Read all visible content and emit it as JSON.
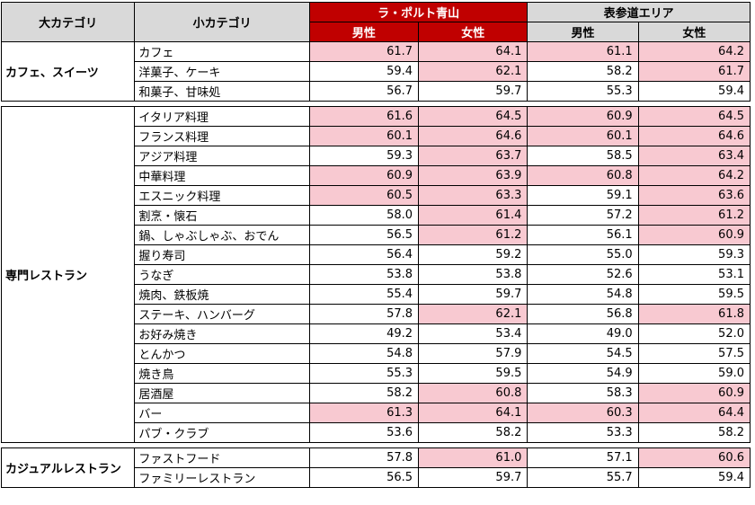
{
  "headers": {
    "major": "大カテゴリ",
    "minor": "小カテゴリ",
    "lp_area": "ラ・ポルト青山",
    "om_area": "表参道エリア",
    "male": "男性",
    "female": "女性"
  },
  "groups": [
    {
      "name": "カフェ、スイーツ",
      "rows": [
        {
          "sub": "カフェ",
          "lp_m": "61.7",
          "lp_f": "64.1",
          "om_m": "61.1",
          "om_f": "64.2",
          "hl": [
            true,
            true,
            true,
            true
          ]
        },
        {
          "sub": "洋菓子、ケーキ",
          "lp_m": "59.4",
          "lp_f": "62.1",
          "om_m": "58.2",
          "om_f": "61.7",
          "hl": [
            false,
            true,
            false,
            true
          ]
        },
        {
          "sub": "和菓子、甘味処",
          "lp_m": "56.7",
          "lp_f": "59.7",
          "om_m": "55.3",
          "om_f": "59.4",
          "hl": [
            false,
            false,
            false,
            false
          ]
        }
      ]
    },
    {
      "name": "専門レストラン",
      "rows": [
        {
          "sub": "イタリア料理",
          "lp_m": "61.6",
          "lp_f": "64.5",
          "om_m": "60.9",
          "om_f": "64.5",
          "hl": [
            true,
            true,
            true,
            true
          ]
        },
        {
          "sub": "フランス料理",
          "lp_m": "60.1",
          "lp_f": "64.6",
          "om_m": "60.1",
          "om_f": "64.6",
          "hl": [
            true,
            true,
            true,
            true
          ]
        },
        {
          "sub": "アジア料理",
          "lp_m": "59.3",
          "lp_f": "63.7",
          "om_m": "58.5",
          "om_f": "63.4",
          "hl": [
            false,
            true,
            false,
            true
          ]
        },
        {
          "sub": "中華料理",
          "lp_m": "60.9",
          "lp_f": "63.9",
          "om_m": "60.8",
          "om_f": "64.2",
          "hl": [
            true,
            true,
            true,
            true
          ]
        },
        {
          "sub": "エスニック料理",
          "lp_m": "60.5",
          "lp_f": "63.3",
          "om_m": "59.1",
          "om_f": "63.6",
          "hl": [
            true,
            true,
            false,
            true
          ]
        },
        {
          "sub": "割烹・懐石",
          "lp_m": "58.0",
          "lp_f": "61.4",
          "om_m": "57.2",
          "om_f": "61.2",
          "hl": [
            false,
            true,
            false,
            true
          ]
        },
        {
          "sub": "鍋、しゃぶしゃぶ、おでん",
          "lp_m": "56.5",
          "lp_f": "61.2",
          "om_m": "56.1",
          "om_f": "60.9",
          "hl": [
            false,
            true,
            false,
            true
          ]
        },
        {
          "sub": "握り寿司",
          "lp_m": "56.4",
          "lp_f": "59.2",
          "om_m": "55.0",
          "om_f": "59.3",
          "hl": [
            false,
            false,
            false,
            false
          ]
        },
        {
          "sub": "うなぎ",
          "lp_m": "53.8",
          "lp_f": "53.8",
          "om_m": "52.6",
          "om_f": "53.1",
          "hl": [
            false,
            false,
            false,
            false
          ]
        },
        {
          "sub": "焼肉、鉄板焼",
          "lp_m": "55.4",
          "lp_f": "59.7",
          "om_m": "54.8",
          "om_f": "59.5",
          "hl": [
            false,
            false,
            false,
            false
          ]
        },
        {
          "sub": "ステーキ、ハンバーグ",
          "lp_m": "57.8",
          "lp_f": "62.1",
          "om_m": "56.8",
          "om_f": "61.8",
          "hl": [
            false,
            true,
            false,
            true
          ]
        },
        {
          "sub": "お好み焼き",
          "lp_m": "49.2",
          "lp_f": "53.4",
          "om_m": "49.0",
          "om_f": "52.0",
          "hl": [
            false,
            false,
            false,
            false
          ]
        },
        {
          "sub": "とんかつ",
          "lp_m": "54.8",
          "lp_f": "57.9",
          "om_m": "54.5",
          "om_f": "57.5",
          "hl": [
            false,
            false,
            false,
            false
          ]
        },
        {
          "sub": "焼き鳥",
          "lp_m": "55.3",
          "lp_f": "59.5",
          "om_m": "54.9",
          "om_f": "59.0",
          "hl": [
            false,
            false,
            false,
            false
          ]
        },
        {
          "sub": "居酒屋",
          "lp_m": "58.2",
          "lp_f": "60.8",
          "om_m": "58.3",
          "om_f": "60.9",
          "hl": [
            false,
            true,
            false,
            true
          ]
        },
        {
          "sub": "バー",
          "lp_m": "61.3",
          "lp_f": "64.1",
          "om_m": "60.3",
          "om_f": "64.4",
          "hl": [
            true,
            true,
            true,
            true
          ]
        },
        {
          "sub": "パブ・クラブ",
          "lp_m": "53.6",
          "lp_f": "58.2",
          "om_m": "53.3",
          "om_f": "58.2",
          "hl": [
            false,
            false,
            false,
            false
          ]
        }
      ]
    },
    {
      "name": "カジュアルレストラン",
      "rows": [
        {
          "sub": "ファストフード",
          "lp_m": "57.8",
          "lp_f": "61.0",
          "om_m": "57.1",
          "om_f": "60.6",
          "hl": [
            false,
            true,
            false,
            true
          ]
        },
        {
          "sub": "ファミリーレストラン",
          "lp_m": "56.5",
          "lp_f": "59.7",
          "om_m": "55.7",
          "om_f": "59.4",
          "hl": [
            false,
            false,
            false,
            false
          ]
        }
      ]
    }
  ]
}
